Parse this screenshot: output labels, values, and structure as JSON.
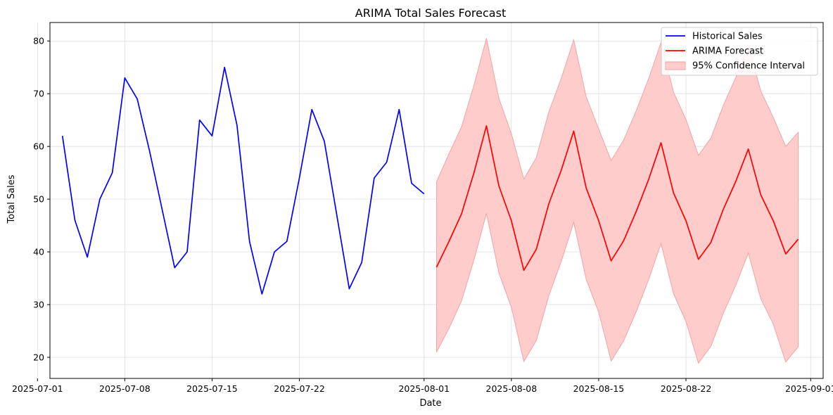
{
  "chart_data": {
    "type": "line",
    "title": "ARIMA Total Sales Forecast",
    "xlabel": "Date",
    "ylabel": "Total Sales",
    "x_axis": {
      "type": "date",
      "range": [
        "2025-07-02",
        "2025-09-02"
      ],
      "ticks": [
        "2025-07-01",
        "2025-07-08",
        "2025-07-15",
        "2025-07-22",
        "2025-08-01",
        "2025-08-08",
        "2025-08-15",
        "2025-08-22",
        "2025-09-01"
      ]
    },
    "y_axis": {
      "range": [
        16,
        83.5
      ],
      "ticks": [
        20,
        30,
        40,
        50,
        60,
        70,
        80
      ]
    },
    "grid": true,
    "legend_position": "top-right",
    "colors": {
      "historical": "#0000ff",
      "forecast": "#ff0000",
      "ci_fill": "#ffcccc",
      "ci_edge": "#f3a3a3"
    },
    "series": [
      {
        "name": "Historical Sales",
        "kind": "line",
        "color": "#0000ff",
        "points": [
          [
            "2025-07-03",
            62
          ],
          [
            "2025-07-04",
            46
          ],
          [
            "2025-07-05",
            39
          ],
          [
            "2025-07-06",
            50
          ],
          [
            "2025-07-07",
            55
          ],
          [
            "2025-07-08",
            73
          ],
          [
            "2025-07-09",
            69
          ],
          [
            "2025-07-10",
            59
          ],
          [
            "2025-07-11",
            48
          ],
          [
            "2025-07-12",
            37
          ],
          [
            "2025-07-13",
            40
          ],
          [
            "2025-07-14",
            65
          ],
          [
            "2025-07-15",
            62
          ],
          [
            "2025-07-16",
            75
          ],
          [
            "2025-07-17",
            64
          ],
          [
            "2025-07-18",
            42
          ],
          [
            "2025-07-19",
            32
          ],
          [
            "2025-07-20",
            40
          ],
          [
            "2025-07-21",
            42
          ],
          [
            "2025-07-22",
            54
          ],
          [
            "2025-07-23",
            67
          ],
          [
            "2025-07-24",
            61
          ],
          [
            "2025-07-25",
            47
          ],
          [
            "2025-07-26",
            33
          ],
          [
            "2025-07-27",
            38
          ],
          [
            "2025-07-28",
            54
          ],
          [
            "2025-07-29",
            57
          ],
          [
            "2025-07-30",
            67
          ],
          [
            "2025-07-31",
            53
          ],
          [
            "2025-08-01",
            51
          ]
        ]
      },
      {
        "name": "ARIMA Forecast",
        "kind": "line",
        "color": "#ff0000",
        "points": [
          [
            "2025-08-02",
            37.1
          ],
          [
            "2025-08-03",
            42.0
          ],
          [
            "2025-08-04",
            47.2
          ],
          [
            "2025-08-05",
            55.0
          ],
          [
            "2025-08-06",
            63.9
          ],
          [
            "2025-08-07",
            52.5
          ],
          [
            "2025-08-08",
            45.9
          ],
          [
            "2025-08-09",
            36.5
          ],
          [
            "2025-08-10",
            40.5
          ],
          [
            "2025-08-11",
            49.1
          ],
          [
            "2025-08-12",
            55.5
          ],
          [
            "2025-08-13",
            62.9
          ],
          [
            "2025-08-14",
            52.1
          ],
          [
            "2025-08-15",
            45.9
          ],
          [
            "2025-08-16",
            38.3
          ],
          [
            "2025-08-17",
            42.1
          ],
          [
            "2025-08-18",
            47.6
          ],
          [
            "2025-08-19",
            53.7
          ],
          [
            "2025-08-20",
            60.7
          ],
          [
            "2025-08-21",
            51.2
          ],
          [
            "2025-08-22",
            45.9
          ],
          [
            "2025-08-23",
            38.6
          ],
          [
            "2025-08-24",
            41.8
          ],
          [
            "2025-08-25",
            48.1
          ],
          [
            "2025-08-26",
            53.4
          ],
          [
            "2025-08-27",
            59.5
          ],
          [
            "2025-08-28",
            50.8
          ],
          [
            "2025-08-29",
            45.9
          ],
          [
            "2025-08-30",
            39.6
          ],
          [
            "2025-08-31",
            42.4
          ]
        ]
      },
      {
        "name": "95% Confidence Interval",
        "kind": "band",
        "color": "#ffcccc",
        "x": [
          "2025-08-02",
          "2025-08-03",
          "2025-08-04",
          "2025-08-05",
          "2025-08-06",
          "2025-08-07",
          "2025-08-08",
          "2025-08-09",
          "2025-08-10",
          "2025-08-11",
          "2025-08-12",
          "2025-08-13",
          "2025-08-14",
          "2025-08-15",
          "2025-08-16",
          "2025-08-17",
          "2025-08-18",
          "2025-08-19",
          "2025-08-20",
          "2025-08-21",
          "2025-08-22",
          "2025-08-23",
          "2025-08-24",
          "2025-08-25",
          "2025-08-26",
          "2025-08-27",
          "2025-08-28",
          "2025-08-29",
          "2025-08-30",
          "2025-08-31"
        ],
        "lower": [
          21,
          25.5,
          30.7,
          38.5,
          47.3,
          36,
          29.5,
          19.2,
          23.2,
          31.7,
          38.2,
          45.6,
          34.8,
          28.6,
          19.3,
          23.1,
          28.6,
          34.7,
          41.6,
          32.1,
          26.8,
          18.9,
          22.1,
          28.4,
          33.7,
          39.8,
          31.1,
          26.3,
          19.1,
          22
        ],
        "upper": [
          53.3,
          58.6,
          63.7,
          71.6,
          80.5,
          69.1,
          62.4,
          53.8,
          57.9,
          66.5,
          72.9,
          80.2,
          69.4,
          63.3,
          57.3,
          61.2,
          66.7,
          72.8,
          79.7,
          70.3,
          65.1,
          58.3,
          61.6,
          67.8,
          73.1,
          79.2,
          70.5,
          65.5,
          60,
          62.7
        ]
      }
    ]
  }
}
